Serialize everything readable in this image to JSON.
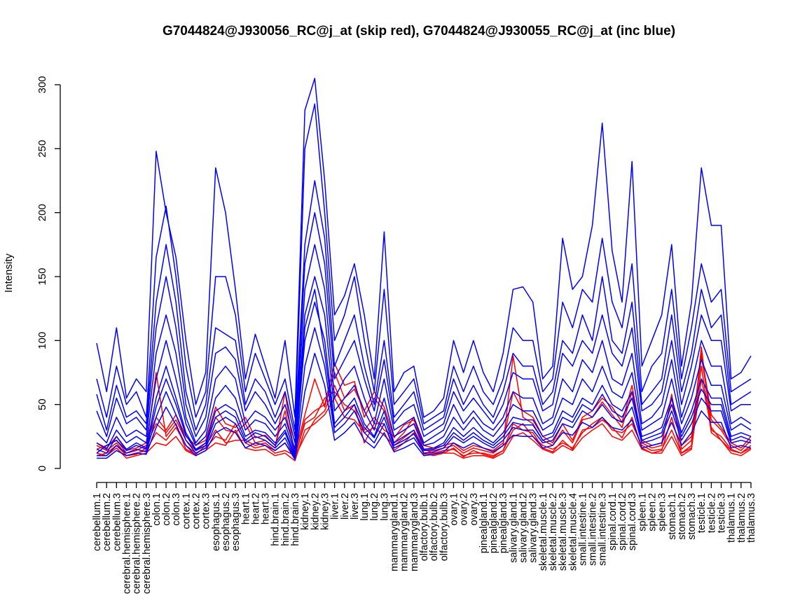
{
  "chart_data": {
    "type": "line",
    "title": "G7044824@J930056_RC@j_at (skip red), G7044824@J930055_RC@j_at (inc blue)",
    "ylabel": "Intensity",
    "xlabel": "",
    "ylim": [
      0,
      300
    ],
    "yticks": [
      0,
      50,
      100,
      150,
      200,
      250,
      300
    ],
    "grid": false,
    "categories": [
      "cerebellum.1",
      "cerebellum.2",
      "cerebellum.3",
      "cerebral.hemisphere.1",
      "cerebral.hemisphere.2",
      "cerebral.hemisphere.3",
      "colon.1",
      "colon.2",
      "colon.3",
      "cortex.1",
      "cortex.2",
      "cortex.3",
      "esophagus.1",
      "esophagus.2",
      "esophagus.3",
      "heart.1",
      "heart.2",
      "heart.3",
      "hind.brain.1",
      "hind.brain.2",
      "hind.brain.3",
      "kidney.1",
      "kidney.2",
      "kidney.3",
      "liver.1",
      "liver.2",
      "liver.3",
      "lung.1",
      "lung.2",
      "lung.3",
      "mammarygland.1",
      "mammarygland.2",
      "mammarygland.3",
      "olfactory.bulb.1",
      "olfactory.bulb.2",
      "olfactory.bulb.3",
      "ovary.1",
      "ovary.2",
      "ovary.3",
      "pinealgland.1",
      "pinealgland.2",
      "pinealgland.3",
      "salivary.gland.1",
      "salivary.gland.2",
      "salivary.gland.3",
      "skeletal.muscle.1",
      "skeletal.muscle.2",
      "skeletal.muscle.3",
      "skeletal.muscle.4",
      "small.intestine.1",
      "small.intestine.2",
      "small.intestine.3",
      "spinal.cord.1",
      "spinal.cord.2",
      "spinal.cord.3",
      "spleen.1",
      "spleen.2",
      "spleen.3",
      "stomach.1",
      "stomach.2",
      "stomach.3",
      "testicle.1",
      "testicle.2",
      "testicle.3",
      "thalamus.1",
      "thalamus.2",
      "thalamus.3"
    ],
    "series_colors": {
      "skip": "#ff0000",
      "inc": "#0000ff"
    },
    "series": [
      {
        "name": "skip red 1",
        "group": "skip",
        "values": [
          18,
          14,
          20,
          10,
          12,
          14,
          28,
          22,
          32,
          18,
          12,
          16,
          25,
          22,
          35,
          20,
          16,
          18,
          12,
          14,
          10,
          35,
          40,
          55,
          60,
          50,
          45,
          30,
          40,
          30,
          25,
          30,
          35,
          15,
          12,
          14,
          15,
          10,
          12,
          12,
          10,
          14,
          30,
          35,
          25,
          18,
          15,
          20,
          16,
          28,
          35,
          40,
          30,
          28,
          35,
          18,
          14,
          15,
          30,
          12,
          18,
          95,
          30,
          25,
          15,
          12,
          18
        ]
      },
      {
        "name": "skip red 2",
        "group": "skip",
        "values": [
          15,
          18,
          22,
          12,
          14,
          18,
          35,
          28,
          38,
          22,
          14,
          20,
          40,
          30,
          28,
          35,
          20,
          22,
          16,
          60,
          8,
          38,
          45,
          50,
          82,
          65,
          68,
          40,
          55,
          45,
          20,
          28,
          40,
          14,
          14,
          16,
          18,
          12,
          16,
          14,
          12,
          18,
          88,
          40,
          35,
          22,
          18,
          30,
          20,
          38,
          40,
          52,
          42,
          32,
          60,
          20,
          16,
          18,
          58,
          15,
          22,
          88,
          38,
          30,
          18,
          14,
          22
        ]
      },
      {
        "name": "skip red 3",
        "group": "skip",
        "values": [
          12,
          10,
          16,
          8,
          10,
          12,
          20,
          18,
          25,
          14,
          10,
          14,
          20,
          18,
          30,
          16,
          14,
          15,
          10,
          12,
          6,
          30,
          35,
          42,
          55,
          40,
          38,
          28,
          32,
          26,
          18,
          24,
          30,
          12,
          10,
          12,
          12,
          8,
          10,
          10,
          8,
          12,
          25,
          28,
          22,
          15,
          12,
          18,
          14,
          24,
          30,
          35,
          25,
          22,
          30,
          15,
          12,
          12,
          25,
          10,
          15,
          80,
          28,
          22,
          12,
          10,
          15
        ]
      },
      {
        "name": "skip red 4",
        "group": "skip",
        "values": [
          20,
          16,
          25,
          14,
          16,
          20,
          40,
          30,
          42,
          25,
          18,
          22,
          48,
          35,
          32,
          40,
          24,
          26,
          18,
          45,
          12,
          42,
          70,
          48,
          75,
          55,
          62,
          45,
          60,
          48,
          24,
          34,
          38,
          18,
          16,
          18,
          20,
          14,
          18,
          16,
          14,
          20,
          60,
          45,
          40,
          25,
          20,
          35,
          22,
          40,
          45,
          55,
          48,
          36,
          65,
          22,
          18,
          20,
          55,
          18,
          25,
          90,
          42,
          32,
          20,
          16,
          25
        ]
      },
      {
        "name": "skip red 5",
        "group": "skip",
        "values": [
          10,
          12,
          18,
          10,
          11,
          16,
          75,
          25,
          35,
          15,
          11,
          18,
          30,
          20,
          22,
          22,
          18,
          20,
          14,
          20,
          9,
          25,
          38,
          45,
          65,
          45,
          50,
          20,
          35,
          35,
          14,
          20,
          28,
          11,
          12,
          12,
          16,
          9,
          14,
          11,
          9,
          14,
          35,
          30,
          28,
          16,
          13,
          22,
          15,
          30,
          32,
          38,
          32,
          24,
          40,
          16,
          12,
          14,
          40,
          12,
          16,
          70,
          32,
          22,
          14,
          12,
          16
        ]
      },
      {
        "name": "inc blue 1",
        "group": "inc",
        "values": [
          98,
          60,
          110,
          55,
          70,
          60,
          248,
          200,
          165,
          100,
          50,
          75,
          235,
          200,
          140,
          70,
          105,
          80,
          55,
          100,
          40,
          280,
          305,
          225,
          120,
          135,
          160,
          120,
          70,
          185,
          60,
          75,
          80,
          40,
          45,
          55,
          100,
          75,
          100,
          75,
          60,
          90,
          140,
          142,
          130,
          70,
          80,
          180,
          140,
          150,
          190,
          270,
          170,
          130,
          240,
          80,
          100,
          120,
          175,
          80,
          130,
          235,
          190,
          190,
          70,
          75,
          88
        ]
      },
      {
        "name": "inc blue 2",
        "group": "inc",
        "values": [
          70,
          40,
          80,
          50,
          60,
          40,
          165,
          205,
          150,
          80,
          40,
          60,
          150,
          150,
          120,
          60,
          90,
          70,
          50,
          70,
          30,
          250,
          285,
          200,
          100,
          120,
          150,
          100,
          60,
          140,
          50,
          60,
          70,
          35,
          40,
          45,
          80,
          60,
          80,
          60,
          50,
          70,
          110,
          100,
          100,
          60,
          70,
          130,
          110,
          140,
          130,
          180,
          130,
          110,
          160,
          60,
          80,
          90,
          140,
          70,
          110,
          160,
          130,
          140,
          60,
          65,
          70
        ]
      },
      {
        "name": "inc blue 3",
        "group": "inc",
        "values": [
          58,
          30,
          65,
          40,
          45,
          35,
          130,
          175,
          130,
          60,
          30,
          50,
          110,
          105,
          100,
          50,
          70,
          60,
          40,
          60,
          25,
          175,
          225,
          180,
          80,
          100,
          120,
          80,
          50,
          100,
          40,
          50,
          60,
          30,
          35,
          40,
          70,
          50,
          65,
          50,
          40,
          60,
          90,
          80,
          80,
          50,
          60,
          100,
          90,
          120,
          100,
          150,
          100,
          90,
          130,
          50,
          60,
          70,
          120,
          60,
          90,
          140,
          110,
          120,
          50,
          55,
          60
        ]
      },
      {
        "name": "inc blue 4",
        "group": "inc",
        "values": [
          45,
          25,
          55,
          35,
          40,
          30,
          110,
          150,
          110,
          50,
          25,
          40,
          90,
          95,
          85,
          45,
          60,
          50,
          35,
          50,
          20,
          160,
          200,
          160,
          70,
          85,
          100,
          70,
          45,
          85,
          35,
          45,
          50,
          25,
          30,
          35,
          60,
          45,
          55,
          45,
          35,
          50,
          75,
          70,
          70,
          45,
          50,
          90,
          80,
          100,
          90,
          120,
          90,
          80,
          110,
          45,
          50,
          60,
          100,
          50,
          80,
          120,
          100,
          100,
          45,
          50,
          50
        ]
      },
      {
        "name": "inc blue 5",
        "group": "inc",
        "values": [
          28,
          20,
          40,
          25,
          30,
          25,
          90,
          120,
          90,
          40,
          20,
          30,
          70,
          80,
          70,
          35,
          45,
          40,
          30,
          40,
          15,
          140,
          175,
          140,
          55,
          70,
          80,
          55,
          35,
          70,
          30,
          35,
          40,
          20,
          25,
          30,
          50,
          35,
          45,
          35,
          30,
          40,
          60,
          55,
          55,
          35,
          40,
          70,
          60,
          85,
          75,
          100,
          70,
          65,
          90,
          35,
          40,
          50,
          85,
          40,
          65,
          100,
          80,
          80,
          35,
          40,
          35
        ]
      },
      {
        "name": "inc blue 6",
        "group": "inc",
        "values": [
          20,
          15,
          30,
          20,
          25,
          20,
          70,
          100,
          70,
          35,
          18,
          25,
          55,
          65,
          55,
          30,
          38,
          35,
          25,
          35,
          12,
          120,
          150,
          120,
          45,
          55,
          65,
          45,
          30,
          55,
          25,
          30,
          35,
          18,
          20,
          25,
          40,
          30,
          40,
          30,
          25,
          35,
          50,
          45,
          45,
          30,
          35,
          55,
          50,
          70,
          60,
          80,
          60,
          55,
          75,
          30,
          35,
          40,
          70,
          35,
          55,
          85,
          65,
          65,
          30,
          35,
          30
        ]
      },
      {
        "name": "inc blue 7",
        "group": "inc",
        "values": [
          15,
          12,
          25,
          15,
          20,
          16,
          55,
          80,
          55,
          28,
          15,
          20,
          45,
          50,
          45,
          25,
          30,
          28,
          20,
          30,
          10,
          100,
          130,
          100,
          35,
          45,
          55,
          35,
          25,
          45,
          20,
          25,
          30,
          15,
          16,
          20,
          32,
          25,
          32,
          25,
          20,
          28,
          40,
          38,
          38,
          25,
          28,
          45,
          40,
          55,
          50,
          65,
          50,
          45,
          60,
          25,
          28,
          32,
          55,
          28,
          45,
          70,
          55,
          55,
          25,
          28,
          25
        ]
      },
      {
        "name": "inc blue 8",
        "group": "inc",
        "values": [
          10,
          10,
          18,
          12,
          15,
          13,
          40,
          60,
          42,
          22,
          12,
          16,
          35,
          40,
          35,
          20,
          25,
          22,
          16,
          24,
          8,
          80,
          110,
          80,
          28,
          35,
          45,
          28,
          20,
          35,
          16,
          20,
          24,
          12,
          13,
          16,
          25,
          20,
          25,
          20,
          16,
          22,
          32,
          30,
          30,
          20,
          22,
          35,
          32,
          45,
          40,
          50,
          40,
          36,
          48,
          20,
          22,
          25,
          45,
          22,
          35,
          55,
          45,
          45,
          20,
          22,
          20
        ]
      },
      {
        "name": "inc blue 9",
        "group": "inc",
        "values": [
          8,
          8,
          14,
          10,
          12,
          11,
          32,
          48,
          34,
          18,
          10,
          14,
          28,
          32,
          28,
          16,
          20,
          18,
          14,
          20,
          7,
          60,
          90,
          65,
          22,
          28,
          36,
          22,
          16,
          28,
          13,
          16,
          20,
          10,
          11,
          13,
          20,
          16,
          20,
          16,
          13,
          18,
          26,
          25,
          25,
          16,
          18,
          28,
          26,
          36,
          32,
          40,
          32,
          30,
          38,
          16,
          18,
          20,
          36,
          18,
          28,
          45,
          36,
          36,
          16,
          18,
          16
        ]
      },
      {
        "name": "inc blue 10",
        "group": "inc",
        "values": [
          12,
          18,
          22,
          14,
          18,
          15,
          48,
          70,
          50,
          26,
          14,
          18,
          40,
          45,
          40,
          22,
          28,
          25,
          18,
          28,
          9,
          110,
          140,
          90,
          32,
          40,
          50,
          32,
          24,
          40,
          18,
          22,
          27,
          14,
          15,
          18,
          28,
          22,
          28,
          22,
          18,
          25,
          36,
          34,
          34,
          22,
          25,
          40,
          36,
          50,
          45,
          58,
          45,
          40,
          55,
          22,
          25,
          28,
          50,
          25,
          40,
          62,
          50,
          50,
          22,
          25,
          22
        ]
      }
    ]
  }
}
